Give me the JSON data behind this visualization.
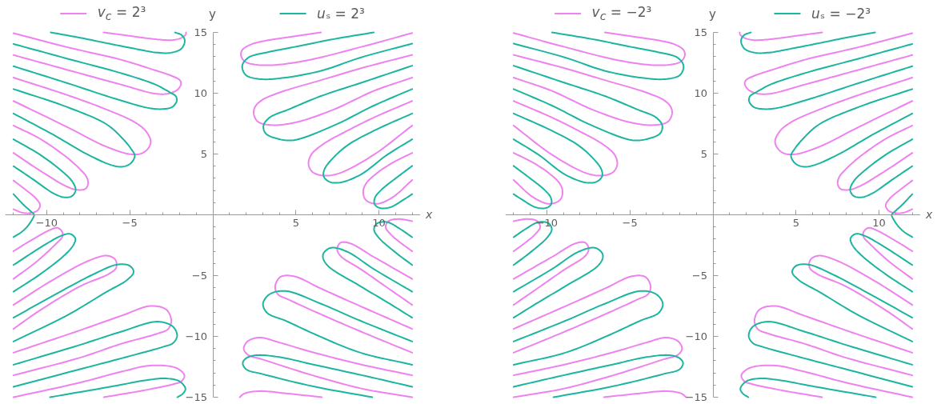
{
  "chart_data": [
    {
      "type": "line",
      "xlabel": "x",
      "ylabel": "y",
      "xlim": [
        -12.5,
        12.5
      ],
      "ylim": [
        -15,
        15
      ],
      "xticks": [
        {
          "value": -12,
          "label": null
        },
        {
          "value": -11,
          "label": null
        },
        {
          "value": -10,
          "label": "−10"
        },
        {
          "value": -9,
          "label": null
        },
        {
          "value": -8,
          "label": null
        },
        {
          "value": -7,
          "label": null
        },
        {
          "value": -6,
          "label": null
        },
        {
          "value": -5,
          "label": "−5"
        },
        {
          "value": -4,
          "label": null
        },
        {
          "value": -3,
          "label": null
        },
        {
          "value": -2,
          "label": null
        },
        {
          "value": -1,
          "label": null
        },
        {
          "value": 1,
          "label": null
        },
        {
          "value": 2,
          "label": null
        },
        {
          "value": 3,
          "label": null
        },
        {
          "value": 4,
          "label": null
        },
        5,
        {
          "value": 6,
          "label": null
        },
        {
          "value": 7,
          "label": null
        },
        {
          "value": 8,
          "label": null
        },
        {
          "value": 9,
          "label": null
        },
        10,
        {
          "value": 11,
          "label": null
        },
        {
          "value": 12,
          "label": null
        }
      ],
      "yticks": [
        {
          "value": -15,
          "label": "−15"
        },
        {
          "value": -14,
          "label": null
        },
        {
          "value": -13,
          "label": null
        },
        {
          "value": -12,
          "label": null
        },
        {
          "value": -11,
          "label": null
        },
        {
          "value": -10,
          "label": "−10"
        },
        {
          "value": -9,
          "label": null
        },
        {
          "value": -8,
          "label": null
        },
        {
          "value": -7,
          "label": null
        },
        {
          "value": -6,
          "label": null
        },
        {
          "value": -5,
          "label": "−5"
        },
        {
          "value": -4,
          "label": null
        },
        {
          "value": -3,
          "label": null
        },
        {
          "value": -2,
          "label": null
        },
        {
          "value": -1,
          "label": null
        },
        {
          "value": 1,
          "label": null
        },
        {
          "value": 2,
          "label": null
        },
        {
          "value": 3,
          "label": null
        },
        {
          "value": 4,
          "label": null
        },
        5,
        {
          "value": 6,
          "label": null
        },
        {
          "value": 7,
          "label": null
        },
        {
          "value": 8,
          "label": null
        },
        {
          "value": 9,
          "label": null
        },
        10,
        {
          "value": 11,
          "label": null
        },
        {
          "value": 12,
          "label": null
        },
        {
          "value": 13,
          "label": null
        },
        {
          "value": 14,
          "label": null
        },
        15
      ],
      "legend": "top",
      "series": [
        {
          "name": "v$_{c}$ = 2³",
          "color": "#ee82ee",
          "x": [
            -6.58,
            -4.77,
            -3.17,
            -2.36,
            -1.88,
            -1.64,
            -1.61,
            null,
            -12,
            -8.79,
            -5.58,
            -3.49,
            -2.52,
            -2.01,
            -1.91,
            -2.12,
            -2.68,
            -3.49,
            -5.58,
            -8.79,
            -12,
            null,
            -12,
            -8.79,
            -6.41,
            -4.77,
            -4.05,
            -3.74,
            -3.9,
            -4.29,
            -4.94,
            -6.41,
            -8.79,
            -12,
            null,
            -12,
            -10.4,
            -8.79,
            -7.99,
            -7.59,
            -7.51,
            -7.67,
            -8.15,
            -8.79,
            -10.4,
            -12,
            null,
            -12,
            -11.21,
            -10.64,
            -10.4,
            -10.56,
            -11.05,
            -11.53,
            -12,
            null,
            6.51,
            4.87,
            3.26,
            2.3,
            1.78,
            1.69,
            1.9,
            2.46,
            3.59,
            5.68,
            8.89,
            12,
            null,
            12,
            8.89,
            6.48,
            4.07,
            2.94,
            2.54,
            2.46,
            2.7,
            3.42,
            4.87,
            7.28,
            9.69,
            12,
            null,
            12,
            9.69,
            8.09,
            6.64,
            5.92,
            5.76,
            6,
            6.64,
            7.6,
            9.69,
            12,
            null,
            12,
            10.82,
            9.86,
            9.21,
            9.05,
            9.21,
            9.86,
            10.82,
            12,
            null,
            -12,
            -10.88,
            -9.76,
            -9.36,
            -9.07,
            -9.07,
            -9.44,
            -10.56,
            -12,
            null,
            -12,
            -9.6,
            -7.51,
            -6.38,
            -5.87,
            -5.82,
            -6.22,
            -7.99,
            -10.4,
            -12,
            null,
            -12,
            -8,
            -5.5,
            -3.75,
            -2.8,
            -2.5,
            -2.7,
            -3.4,
            -5.5,
            -8,
            -12,
            null,
            -12,
            -8,
            -5.5,
            -3.75,
            -2.2,
            -1.71,
            -1.9,
            -2.3,
            -4,
            -6.56,
            null,
            12,
            11.2,
            10.6,
            10.4,
            10.7,
            11.3,
            12,
            null,
            12,
            9.69,
            8.25,
            7.68,
            7.48,
            7.7,
            8.89,
            10.5,
            12,
            null,
            12,
            8.89,
            6.48,
            4.87,
            4.07,
            3.75,
            3.91,
            4.55,
            6.48,
            8.89,
            12,
            null,
            12,
            8.89,
            6,
            4,
            2.8,
            2.1,
            1.86,
            2.1,
            3,
            6,
            9,
            12,
            null,
            1.62,
            1.9,
            2.8,
            4.5,
            6.56
          ],
          "values": [
            15,
            14.67,
            14.4,
            14.38,
            14.56,
            14.82,
            15,
            null,
            14.93,
            13.79,
            12.77,
            11.89,
            11.45,
            11.1,
            10.8,
            10.3,
            9.97,
            9.97,
            10.73,
            11.93,
            13.14,
            null,
            11.28,
            9.86,
            8.66,
            7.67,
            6.91,
            6.05,
            5.45,
            5.05,
            4.98,
            5.6,
            7.23,
            9.36,
            null,
            7.34,
            6.25,
            4.72,
            3.74,
            3.08,
            2.54,
            2.14,
            2.05,
            2.32,
            3.63,
            5.09,
            null,
            2.82,
            1.99,
            1.33,
            0.79,
            0.35,
            0.13,
            0.2,
            0.46,
            null,
            15,
            14.67,
            14.34,
            14.01,
            13.57,
            13.14,
            12.63,
            12.37,
            12.31,
            12.7,
            13.79,
            14.95,
            null,
            13.15,
            12.04,
            11.06,
            10.08,
            9.42,
            8.87,
            8.33,
            7.67,
            7.39,
            7.56,
            8.66,
            10.19,
            11.28,
            null,
            9.36,
            8,
            6.91,
            5.81,
            4.94,
            4.17,
            3.52,
            3.23,
            3.41,
            4.94,
            7.34,
            null,
            5.09,
            4.28,
            3.41,
            2.54,
            1.88,
            1.22,
            0.9,
            1.44,
            2.86,
            null,
            -2.99,
            -2.05,
            -1.22,
            -1.07,
            -1.4,
            -1.83,
            -2.38,
            -3.8,
            -5.27,
            null,
            -7.41,
            -5.33,
            -3.8,
            -3.36,
            -3.69,
            -4.35,
            -4.83,
            -5.88,
            -7.85,
            -9.38,
            null,
            -11.34,
            -9.5,
            -8.3,
            -7.5,
            -7.8,
            -8.7,
            -9.4,
            -9.8,
            -10.6,
            -11.75,
            -13.2,
            null,
            -15,
            -13.8,
            -12.9,
            -12.4,
            -12.6,
            -13.2,
            -13.7,
            -13.9,
            -14.4,
            -15,
            null,
            -0.52,
            -0.35,
            -0.5,
            -1,
            -1.6,
            -2.3,
            -3,
            null,
            -5.27,
            -3.47,
            -2.34,
            -2.3,
            -2.82,
            -3.4,
            -4.46,
            -5.99,
            -7.41,
            null,
            -9.38,
            -7.52,
            -6.05,
            -5.05,
            -5.11,
            -5.88,
            -6.53,
            -6.97,
            -8.17,
            -9.59,
            -11.34,
            null,
            -13.2,
            -12.3,
            -11.3,
            -10.5,
            -10.1,
            -10.4,
            -11,
            -11.5,
            -11.9,
            -13.2,
            -14.3,
            -15,
            null,
            -15,
            -14.7,
            -14.5,
            -14.7,
            -15
          ]
        },
        {
          "name": "uₛ = 2³",
          "color": "#1cb5a0",
          "x": [
            -9.76,
            -7.99,
            -6.41,
            -4.77,
            -3.49,
            -2.52,
            -1.88,
            -1.69,
            -1.88,
            -2.28,
            null,
            -12,
            -8.79,
            -5.58,
            -3.49,
            -2.6,
            -2.23,
            -2.17,
            -2.44,
            -3.01,
            -3.81,
            -5.58,
            -8.79,
            -12,
            null,
            -12,
            -8.79,
            -6.41,
            -5.42,
            -4.9,
            -4.7,
            -4.94,
            -5.42,
            -6.06,
            -7.51,
            -9.6,
            -12,
            null,
            -12,
            -10.4,
            -9.12,
            -8.47,
            -8.26,
            -8.47,
            -8.96,
            -9.6,
            -10.88,
            -12,
            null,
            -12,
            -11.37,
            -10.92,
            -10.76,
            -10.8,
            -11.1,
            -11.5,
            -12,
            null,
            9.69,
            7.28,
            4.87,
            3.26,
            2.14,
            1.77,
            1.98,
            2.78,
            4.07,
            6.48,
            8.89,
            12,
            null,
            12,
            8.89,
            6.48,
            4.55,
            3.42,
            3.05,
            3.18,
            3.91,
            4.87,
            7.28,
            9.69,
            12,
            null,
            12,
            9.69,
            8.09,
            7.12,
            6.72,
            6.67,
            6.96,
            7.6,
            8.89,
            10.5,
            12,
            null,
            12,
            10.98,
            10.18,
            9.77,
            9.73,
            10.02,
            10.66,
            11.46,
            12,
            null,
            -12,
            -10.4,
            -9.12,
            -8.6,
            -8.28,
            -8.4,
            -8.96,
            -10.4,
            -12,
            null,
            -12,
            -9.6,
            -7.19,
            -5.74,
            -5,
            -4.77,
            -5.15,
            -6.38,
            -8.79,
            -12,
            null,
            -12,
            -8,
            -5.5,
            -3.32,
            -2.4,
            -2.15,
            -2.4,
            -2.97,
            -5.5,
            -8,
            -12,
            null,
            -9.8,
            -6,
            -4,
            -2.81,
            -2,
            -1.65,
            -1.8,
            -2.13,
            null,
            12,
            11.2,
            10.5,
            9.9,
            9.7,
            10,
            11,
            12,
            null,
            12,
            9.69,
            8.09,
            7.12,
            6.67,
            6.64,
            6.96,
            8.89,
            10.5,
            12,
            null,
            12,
            8.89,
            6.48,
            4.39,
            3.42,
            3.02,
            3.26,
            4.39,
            6.48,
            8.89,
            12,
            null,
            12,
            9,
            6,
            4,
            2.6,
            2,
            1.8,
            2,
            3,
            6,
            9.6
          ],
          "values": [
            15,
            14.56,
            14.12,
            13.68,
            13.36,
            13.33,
            13.68,
            14.34,
            14.78,
            15,
            null,
            14.05,
            12.85,
            11.67,
            10.73,
            10.08,
            9.75,
            9.36,
            8.87,
            8.7,
            8.77,
            9.42,
            10.84,
            12.22,
            null,
            10.34,
            8.87,
            7.45,
            6.25,
            5.38,
            4.85,
            4.24,
            3.96,
            4.07,
            4.94,
            6.58,
            8.33,
            null,
            6.21,
            4.94,
            3.63,
            2.75,
            2.05,
            1.55,
            1.44,
            1.77,
            2.97,
            4,
            null,
            1.7,
            0.79,
            0.24,
            0,
            -0.19,
            -0.85,
            -1.4,
            -1.83,
            null,
            15,
            14.45,
            13.79,
            13.36,
            12.93,
            12.26,
            11.5,
            11.17,
            11.23,
            11.83,
            12.93,
            14.08,
            null,
            12.26,
            10.84,
            9.75,
            8.66,
            8,
            7.34,
            6.69,
            6.25,
            6.14,
            7.34,
            8.98,
            10.34,
            null,
            8.33,
            6.91,
            5.7,
            4.5,
            3.74,
            3.19,
            2.75,
            2.64,
            3.3,
            4.94,
            6.21,
            null,
            4.02,
            2.97,
            2.1,
            1.44,
            0.9,
            0.57,
            0.61,
            1.22,
            1.7,
            null,
            -4.13,
            -2.71,
            -1.72,
            -1.57,
            -1.94,
            -2.5,
            -3.36,
            -4.89,
            -6.32,
            null,
            -8.46,
            -6.64,
            -4.89,
            -4.09,
            -4.2,
            -4.7,
            -5.35,
            -6.32,
            -8.28,
            -10.42,
            null,
            -12.33,
            -10.7,
            -9.6,
            -8.79,
            -9.2,
            -9.95,
            -10.55,
            -10.85,
            -11.8,
            -12.7,
            -14.14,
            null,
            -15,
            -14.1,
            -13.6,
            -13.46,
            -13.7,
            -14.3,
            -14.7,
            -15,
            null,
            -1.84,
            -1.1,
            -0.6,
            -0.7,
            -1.2,
            -1.9,
            -3.1,
            -4.13,
            null,
            -6.32,
            -4.46,
            -3.04,
            -2.71,
            -3.15,
            -3.58,
            -4.24,
            -5.88,
            -7.19,
            -8.46,
            null,
            -10.42,
            -8.72,
            -7.3,
            -6.27,
            -6.53,
            -7.3,
            -8.06,
            -8.72,
            -10.03,
            -11.34,
            -12.33,
            null,
            -14.14,
            -13.2,
            -12.3,
            -11.7,
            -11.55,
            -11.8,
            -12.2,
            -12.7,
            -13.1,
            -14.1,
            -15
          ]
        }
      ]
    },
    {
      "type": "line",
      "xlabel": "x",
      "ylabel": "y",
      "xlim": [
        -12.5,
        12.5
      ],
      "ylim": [
        -15,
        15
      ],
      "xticks": [
        {
          "value": -12,
          "label": null
        },
        {
          "value": -11,
          "label": null
        },
        {
          "value": -10,
          "label": "−10"
        },
        {
          "value": -9,
          "label": null
        },
        {
          "value": -8,
          "label": null
        },
        {
          "value": -7,
          "label": null
        },
        {
          "value": -6,
          "label": null
        },
        {
          "value": -5,
          "label": "−5"
        },
        {
          "value": -4,
          "label": null
        },
        {
          "value": -3,
          "label": null
        },
        {
          "value": -2,
          "label": null
        },
        {
          "value": -1,
          "label": null
        },
        {
          "value": 1,
          "label": null
        },
        {
          "value": 2,
          "label": null
        },
        {
          "value": 3,
          "label": null
        },
        {
          "value": 4,
          "label": null
        },
        5,
        {
          "value": 6,
          "label": null
        },
        {
          "value": 7,
          "label": null
        },
        {
          "value": 8,
          "label": null
        },
        {
          "value": 9,
          "label": null
        },
        10,
        {
          "value": 11,
          "label": null
        },
        {
          "value": 12,
          "label": null
        }
      ],
      "yticks": [
        {
          "value": -15,
          "label": "−15"
        },
        {
          "value": -14,
          "label": null
        },
        {
          "value": -13,
          "label": null
        },
        {
          "value": -12,
          "label": null
        },
        {
          "value": -11,
          "label": null
        },
        {
          "value": -10,
          "label": "−10"
        },
        {
          "value": -9,
          "label": null
        },
        {
          "value": -8,
          "label": null
        },
        {
          "value": -7,
          "label": null
        },
        {
          "value": -6,
          "label": null
        },
        {
          "value": -5,
          "label": "−5"
        },
        {
          "value": -4,
          "label": null
        },
        {
          "value": -3,
          "label": null
        },
        {
          "value": -2,
          "label": null
        },
        {
          "value": -1,
          "label": null
        },
        {
          "value": 1,
          "label": null
        },
        {
          "value": 2,
          "label": null
        },
        {
          "value": 3,
          "label": null
        },
        {
          "value": 4,
          "label": null
        },
        5,
        {
          "value": 6,
          "label": null
        },
        {
          "value": 7,
          "label": null
        },
        {
          "value": 8,
          "label": null
        },
        {
          "value": 9,
          "label": null
        },
        10,
        {
          "value": 11,
          "label": null
        },
        {
          "value": 12,
          "label": null
        },
        {
          "value": 13,
          "label": null
        },
        {
          "value": 14,
          "label": null
        },
        15
      ],
      "legend": "top",
      "series": [
        {
          "name": "v$_{c}$ = −2³",
          "color": "#ee82ee",
          "x": [
            6.58,
            4.77,
            3.17,
            2.36,
            1.88,
            1.64,
            1.61,
            null,
            12,
            8.79,
            5.58,
            3.49,
            2.52,
            2.01,
            1.91,
            2.12,
            2.68,
            3.49,
            5.58,
            8.79,
            12,
            null,
            12,
            8.79,
            6.41,
            4.77,
            4.05,
            3.74,
            3.9,
            4.29,
            4.94,
            6.41,
            8.79,
            12,
            null,
            12,
            10.4,
            8.79,
            7.99,
            7.59,
            7.51,
            7.67,
            8.15,
            8.79,
            10.4,
            12,
            null,
            12,
            11.21,
            10.64,
            10.4,
            10.56,
            11.05,
            11.53,
            12,
            null,
            -6.51,
            -4.87,
            -3.26,
            -2.3,
            -1.78,
            -1.69,
            -1.9,
            -2.46,
            -3.59,
            -5.68,
            -8.89,
            -12,
            null,
            -12,
            -8.89,
            -6.48,
            -4.07,
            -2.94,
            -2.54,
            -2.46,
            -2.7,
            -3.42,
            -4.87,
            -7.28,
            -9.69,
            -12,
            null,
            -12,
            -9.69,
            -8.09,
            -6.64,
            -5.92,
            -5.76,
            -6,
            -6.64,
            -7.6,
            -9.69,
            -12,
            null,
            -12,
            -10.82,
            -9.86,
            -9.21,
            -9.05,
            -9.21,
            -9.86,
            -10.82,
            -12,
            null,
            12,
            10.88,
            9.76,
            9.36,
            9.07,
            9.07,
            9.44,
            10.56,
            12,
            null,
            12,
            9.6,
            7.51,
            6.38,
            5.87,
            5.82,
            6.22,
            7.99,
            10.4,
            12,
            null,
            12,
            8,
            5.5,
            3.75,
            2.8,
            2.5,
            2.7,
            3.4,
            5.5,
            8,
            12,
            null,
            12,
            8,
            5.5,
            3.75,
            2.2,
            1.71,
            1.9,
            2.3,
            4,
            6.56,
            null,
            -12,
            -11.2,
            -10.6,
            -10.4,
            -10.7,
            -11.3,
            -12,
            null,
            -12,
            -9.69,
            -8.25,
            -7.68,
            -7.48,
            -7.7,
            -8.89,
            -10.5,
            -12,
            null,
            -12,
            -8.89,
            -6.48,
            -4.87,
            -4.07,
            -3.75,
            -3.91,
            -4.55,
            -6.48,
            -8.89,
            -12,
            null,
            -12,
            -8.89,
            -6,
            -4,
            -2.8,
            -2.1,
            -1.86,
            -2.1,
            -3,
            -6,
            -9,
            -12,
            null,
            -1.62,
            -1.9,
            -2.8,
            -4.5,
            -6.56
          ],
          "values": [
            15,
            14.67,
            14.4,
            14.38,
            14.56,
            14.82,
            15,
            null,
            14.93,
            13.79,
            12.77,
            11.89,
            11.45,
            11.1,
            10.8,
            10.3,
            9.97,
            9.97,
            10.73,
            11.93,
            13.14,
            null,
            11.28,
            9.86,
            8.66,
            7.67,
            6.91,
            6.05,
            5.45,
            5.05,
            4.98,
            5.6,
            7.23,
            9.36,
            null,
            7.34,
            6.25,
            4.72,
            3.74,
            3.08,
            2.54,
            2.14,
            2.05,
            2.32,
            3.63,
            5.09,
            null,
            2.82,
            1.99,
            1.33,
            0.79,
            0.35,
            0.13,
            0.2,
            0.46,
            null,
            15,
            14.67,
            14.34,
            14.01,
            13.57,
            13.14,
            12.63,
            12.37,
            12.31,
            12.7,
            13.79,
            14.95,
            null,
            13.15,
            12.04,
            11.06,
            10.08,
            9.42,
            8.87,
            8.33,
            7.67,
            7.39,
            7.56,
            8.66,
            10.19,
            11.28,
            null,
            9.36,
            8,
            6.91,
            5.81,
            4.94,
            4.17,
            3.52,
            3.23,
            3.41,
            4.94,
            7.34,
            null,
            5.09,
            4.28,
            3.41,
            2.54,
            1.88,
            1.22,
            0.9,
            1.44,
            2.86,
            null,
            -2.99,
            -2.05,
            -1.22,
            -1.07,
            -1.4,
            -1.83,
            -2.38,
            -3.8,
            -5.27,
            null,
            -7.41,
            -5.33,
            -3.8,
            -3.36,
            -3.69,
            -4.35,
            -4.83,
            -5.88,
            -7.85,
            -9.38,
            null,
            -11.34,
            -9.5,
            -8.3,
            -7.5,
            -7.8,
            -8.7,
            -9.4,
            -9.8,
            -10.6,
            -11.75,
            -13.2,
            null,
            -15,
            -13.8,
            -12.9,
            -12.4,
            -12.6,
            -13.2,
            -13.7,
            -13.9,
            -14.4,
            -15,
            null,
            -0.52,
            -0.35,
            -0.5,
            -1,
            -1.6,
            -2.3,
            -3,
            null,
            -5.27,
            -3.47,
            -2.34,
            -2.3,
            -2.82,
            -3.4,
            -4.46,
            -5.99,
            -7.41,
            null,
            -9.38,
            -7.52,
            -6.05,
            -5.05,
            -5.11,
            -5.88,
            -6.53,
            -6.97,
            -8.17,
            -9.59,
            -11.34,
            null,
            -13.2,
            -12.3,
            -11.3,
            -10.5,
            -10.1,
            -10.4,
            -11,
            -11.5,
            -11.9,
            -13.2,
            -14.3,
            -15,
            null,
            -15,
            -14.7,
            -14.5,
            -14.7,
            -15
          ]
        },
        {
          "name": "uₛ = −2³",
          "color": "#1cb5a0",
          "x": [
            9.76,
            7.99,
            6.41,
            4.77,
            3.49,
            2.52,
            1.88,
            1.69,
            1.88,
            2.28,
            null,
            12,
            8.79,
            5.58,
            3.49,
            2.6,
            2.23,
            2.17,
            2.44,
            3.01,
            3.81,
            5.58,
            8.79,
            12,
            null,
            12,
            8.79,
            6.41,
            5.42,
            4.9,
            4.7,
            4.94,
            5.42,
            6.06,
            7.51,
            9.6,
            12,
            null,
            12,
            10.4,
            9.12,
            8.47,
            8.26,
            8.47,
            8.96,
            9.6,
            10.88,
            12,
            null,
            12,
            11.37,
            10.92,
            10.76,
            10.8,
            11.1,
            11.5,
            12,
            null,
            -9.69,
            -7.28,
            -4.87,
            -3.26,
            -2.14,
            -1.77,
            -1.98,
            -2.78,
            -4.07,
            -6.48,
            -8.89,
            -12,
            null,
            -12,
            -8.89,
            -6.48,
            -4.55,
            -3.42,
            -3.05,
            -3.18,
            -3.91,
            -4.87,
            -7.28,
            -9.69,
            -12,
            null,
            -12,
            -9.69,
            -8.09,
            -7.12,
            -6.72,
            -6.67,
            -6.96,
            -7.6,
            -8.89,
            -10.5,
            -12,
            null,
            -12,
            -10.98,
            -10.18,
            -9.77,
            -9.73,
            -10.02,
            -10.66,
            -11.46,
            -12,
            null,
            12,
            10.4,
            9.12,
            8.6,
            8.28,
            8.4,
            8.96,
            10.4,
            12,
            null,
            12,
            9.6,
            7.19,
            5.74,
            5,
            4.77,
            5.15,
            6.38,
            8.79,
            12,
            null,
            12,
            8,
            5.5,
            3.32,
            2.4,
            2.15,
            2.4,
            2.97,
            5.5,
            8,
            12,
            null,
            9.8,
            6,
            4,
            2.81,
            2,
            1.65,
            1.8,
            2.13,
            null,
            -12,
            -11.2,
            -10.5,
            -9.9,
            -9.7,
            -10,
            -11,
            -12,
            null,
            -12,
            -9.69,
            -8.09,
            -7.12,
            -6.67,
            -6.64,
            -6.96,
            -8.89,
            -10.5,
            -12,
            null,
            -12,
            -8.89,
            -6.48,
            -4.39,
            -3.42,
            -3.02,
            -3.26,
            -4.39,
            -6.48,
            -8.89,
            -12,
            null,
            -12,
            -9,
            -6,
            -4,
            -2.6,
            -2,
            -1.8,
            -2,
            -3,
            -6,
            -9.6
          ],
          "values": [
            15,
            14.56,
            14.12,
            13.68,
            13.36,
            13.33,
            13.68,
            14.34,
            14.78,
            15,
            null,
            14.05,
            12.85,
            11.67,
            10.73,
            10.08,
            9.75,
            9.36,
            8.87,
            8.7,
            8.77,
            9.42,
            10.84,
            12.22,
            null,
            10.34,
            8.87,
            7.45,
            6.25,
            5.38,
            4.85,
            4.24,
            3.96,
            4.07,
            4.94,
            6.58,
            8.33,
            null,
            6.21,
            4.94,
            3.63,
            2.75,
            2.05,
            1.55,
            1.44,
            1.77,
            2.97,
            4,
            null,
            1.7,
            0.79,
            0.24,
            0,
            -0.19,
            -0.85,
            -1.4,
            -1.83,
            null,
            15,
            14.45,
            13.79,
            13.36,
            12.93,
            12.26,
            11.5,
            11.17,
            11.23,
            11.83,
            12.93,
            14.08,
            null,
            12.26,
            10.84,
            9.75,
            8.66,
            8,
            7.34,
            6.69,
            6.25,
            6.14,
            7.34,
            8.98,
            10.34,
            null,
            8.33,
            6.91,
            5.7,
            4.5,
            3.74,
            3.19,
            2.75,
            2.64,
            3.3,
            4.94,
            6.21,
            null,
            4.02,
            2.97,
            2.1,
            1.44,
            0.9,
            0.57,
            0.61,
            1.22,
            1.7,
            null,
            -4.13,
            -2.71,
            -1.72,
            -1.57,
            -1.94,
            -2.5,
            -3.36,
            -4.89,
            -6.32,
            null,
            -8.46,
            -6.64,
            -4.89,
            -4.09,
            -4.2,
            -4.7,
            -5.35,
            -6.32,
            -8.28,
            -10.42,
            null,
            -12.33,
            -10.7,
            -9.6,
            -8.79,
            -9.2,
            -9.95,
            -10.55,
            -10.85,
            -11.8,
            -12.7,
            -14.14,
            null,
            -15,
            -14.1,
            -13.6,
            -13.46,
            -13.7,
            -14.3,
            -14.7,
            -15,
            null,
            -1.84,
            -1.1,
            -0.6,
            -0.7,
            -1.2,
            -1.9,
            -3.1,
            -4.13,
            null,
            -6.32,
            -4.46,
            -3.04,
            -2.71,
            -3.15,
            -3.58,
            -4.24,
            -5.88,
            -7.19,
            -8.46,
            null,
            -10.42,
            -8.72,
            -7.3,
            -6.27,
            -6.53,
            -7.3,
            -8.06,
            -8.72,
            -10.03,
            -11.34,
            -12.33,
            null,
            -14.14,
            -13.2,
            -12.3,
            -11.7,
            -11.55,
            -11.8,
            -12.2,
            -12.7,
            -13.1,
            -14.1,
            -15
          ]
        }
      ]
    }
  ]
}
